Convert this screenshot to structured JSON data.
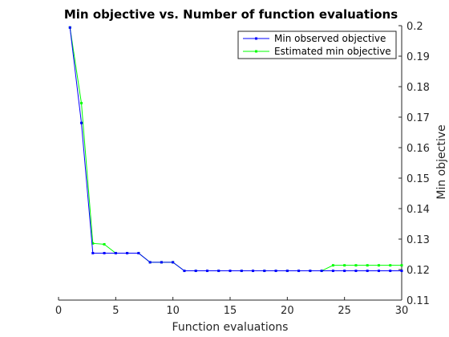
{
  "chart_data": {
    "type": "line",
    "title": "Min objective vs. Number of function evaluations",
    "xlabel": "Function evaluations",
    "ylabel": "Min objective",
    "xlim": [
      0,
      30
    ],
    "ylim": [
      0.11,
      0.2
    ],
    "y_axis_side": "right",
    "grid": false,
    "legend_position": "top-right",
    "x_ticks": [
      0,
      5,
      10,
      15,
      20,
      25,
      30
    ],
    "y_ticks": [
      0.11,
      0.12,
      0.13,
      0.14,
      0.15,
      0.16,
      0.17,
      0.18,
      0.19,
      0.2
    ],
    "x_tick_labels": [
      "0",
      "5",
      "10",
      "15",
      "20",
      "25",
      "30"
    ],
    "y_tick_labels": [
      "0.11",
      "0.12",
      "0.13",
      "0.14",
      "0.15",
      "0.16",
      "0.17",
      "0.18",
      "0.19",
      "0.2"
    ],
    "x": [
      1,
      2,
      3,
      4,
      5,
      6,
      7,
      8,
      9,
      10,
      11,
      12,
      13,
      14,
      15,
      16,
      17,
      18,
      19,
      20,
      21,
      22,
      23,
      24,
      25,
      26,
      27,
      28,
      29,
      30
    ],
    "series": [
      {
        "name": "Min observed objective",
        "color": "#0000ff",
        "values": [
          0.1994,
          0.1681,
          0.1254,
          0.1254,
          0.1254,
          0.1254,
          0.1254,
          0.1224,
          0.1224,
          0.1224,
          0.1196,
          0.1196,
          0.1196,
          0.1196,
          0.1196,
          0.1196,
          0.1196,
          0.1196,
          0.1196,
          0.1196,
          0.1196,
          0.1196,
          0.1196,
          0.1196,
          0.1196,
          0.1196,
          0.1196,
          0.1196,
          0.1196,
          0.1196
        ]
      },
      {
        "name": "Estimated min objective",
        "color": "#00ff00",
        "values": [
          0.1994,
          0.1746,
          0.1286,
          0.1283,
          0.1254,
          0.1254,
          0.1254,
          0.1224,
          0.1224,
          0.1224,
          0.1196,
          0.1196,
          0.1196,
          0.1196,
          0.1196,
          0.1196,
          0.1196,
          0.1196,
          0.1196,
          0.1196,
          0.1196,
          0.1196,
          0.1196,
          0.1214,
          0.1214,
          0.1214,
          0.1214,
          0.1214,
          0.1214,
          0.1214
        ]
      }
    ]
  }
}
